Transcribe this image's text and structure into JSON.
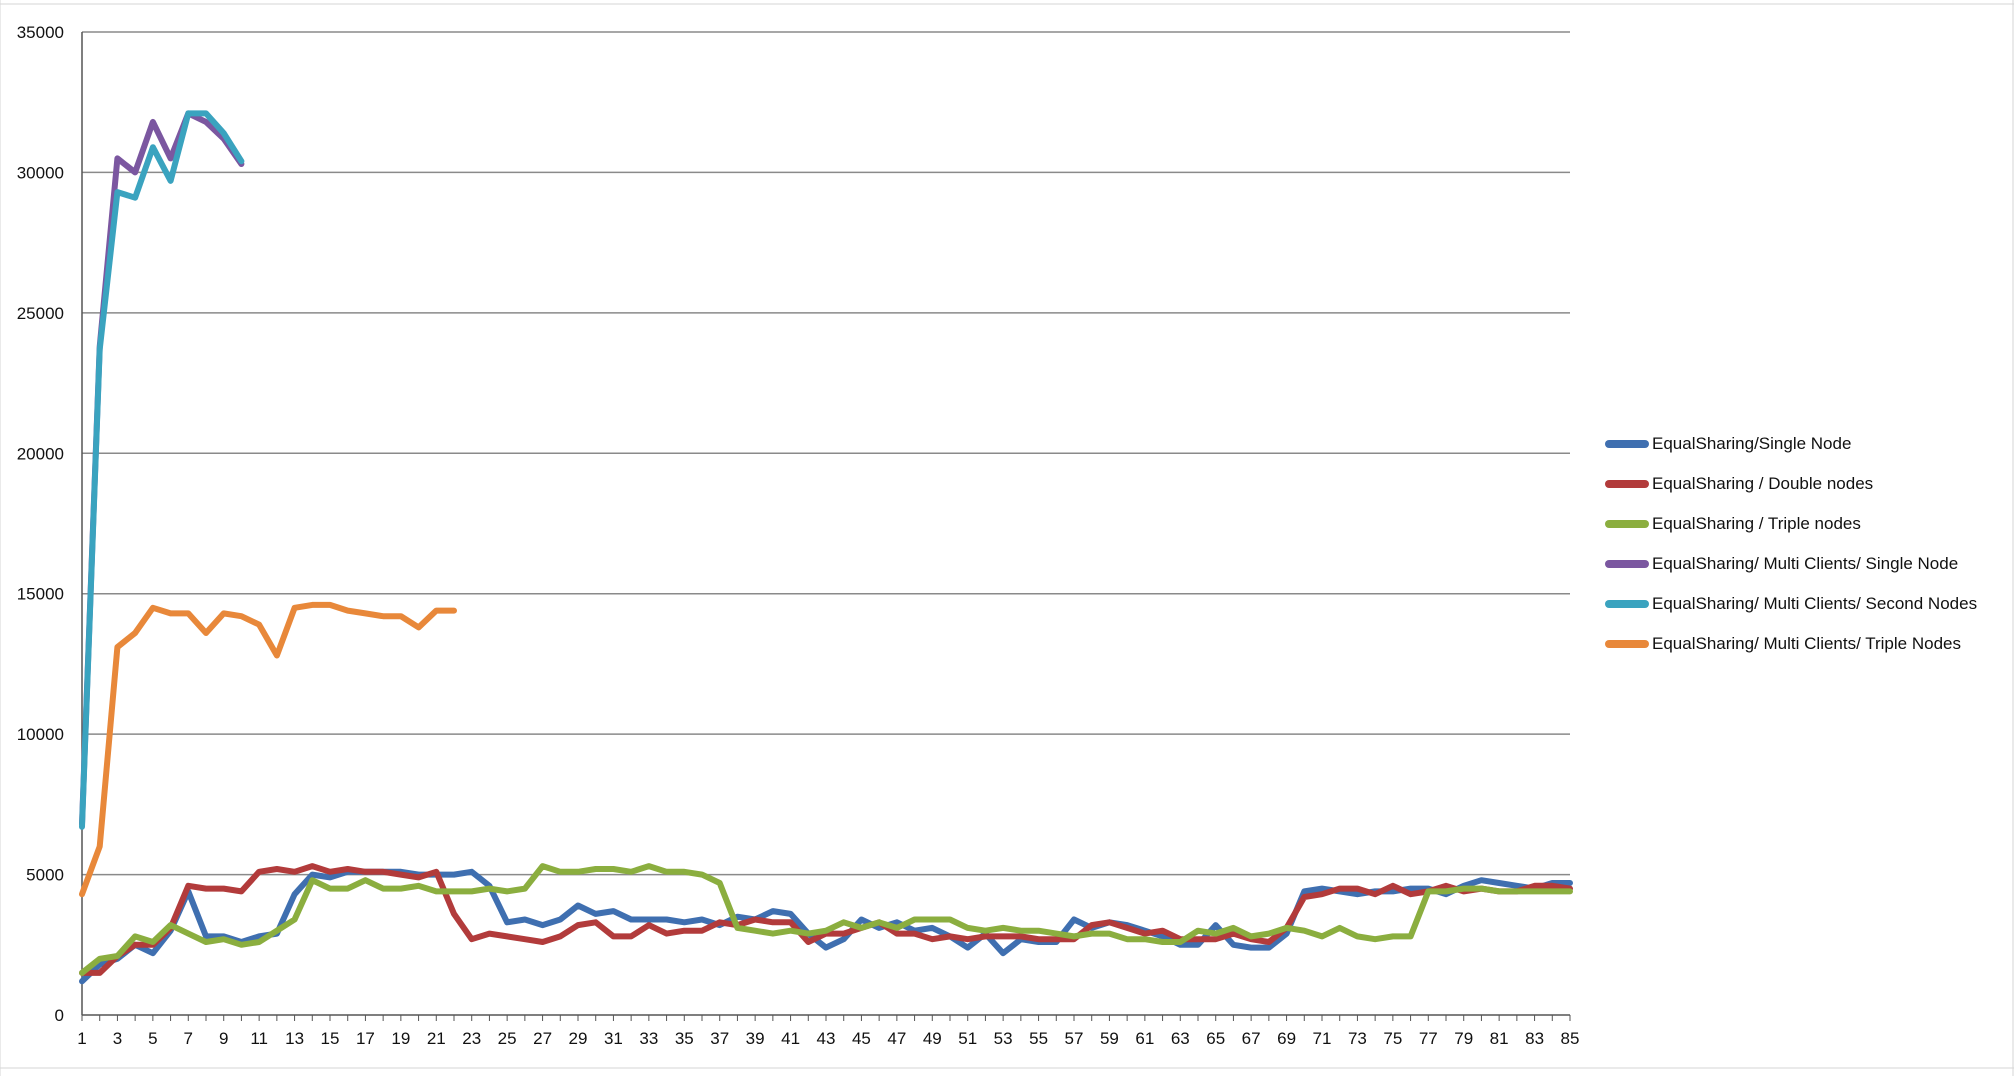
{
  "chart_data": {
    "type": "line",
    "title": "",
    "xlabel": "",
    "ylabel": "",
    "ylim": [
      0,
      35000
    ],
    "xlim": [
      1,
      85
    ],
    "y_ticks": [
      0,
      5000,
      10000,
      15000,
      20000,
      25000,
      30000,
      35000
    ],
    "x_ticks": [
      1,
      3,
      5,
      7,
      9,
      11,
      13,
      15,
      17,
      19,
      21,
      23,
      25,
      27,
      29,
      31,
      33,
      35,
      37,
      39,
      41,
      43,
      45,
      47,
      49,
      51,
      53,
      55,
      57,
      59,
      61,
      63,
      65,
      67,
      69,
      71,
      73,
      75,
      77,
      79,
      81,
      83,
      85
    ],
    "grid": "horizontal",
    "legend_position": "right",
    "series": [
      {
        "name": "EqualSharing/Single Node",
        "color": "#3F6FB0",
        "start_x": 1,
        "values": [
          1200,
          1800,
          2000,
          2500,
          2200,
          3000,
          4400,
          2800,
          2800,
          2600,
          2800,
          2900,
          4300,
          5000,
          4900,
          5100,
          5100,
          5100,
          5100,
          5000,
          5000,
          5000,
          5100,
          4600,
          3300,
          3400,
          3200,
          3400,
          3900,
          3600,
          3700,
          3400,
          3400,
          3400,
          3300,
          3400,
          3200,
          3500,
          3400,
          3700,
          3600,
          2900,
          2400,
          2700,
          3400,
          3100,
          3300,
          3000,
          3100,
          2800,
          2400,
          2900,
          2200,
          2700,
          2600,
          2600,
          3400,
          3100,
          3300,
          3200,
          3000,
          2800,
          2500,
          2500,
          3200,
          2500,
          2400,
          2400,
          2900,
          4400,
          4500,
          4400,
          4300,
          4400,
          4400,
          4500,
          4500,
          4300,
          4600,
          4800,
          4700,
          4600,
          4500,
          4700,
          4700
        ]
      },
      {
        "name": "EqualSharing / Double nodes",
        "color": "#B23B3B",
        "start_x": 1,
        "values": [
          1500,
          1500,
          2100,
          2500,
          2500,
          3100,
          4600,
          4500,
          4500,
          4400,
          5100,
          5200,
          5100,
          5300,
          5100,
          5200,
          5100,
          5100,
          5000,
          4900,
          5100,
          3600,
          2700,
          2900,
          2800,
          2700,
          2600,
          2800,
          3200,
          3300,
          2800,
          2800,
          3200,
          2900,
          3000,
          3000,
          3300,
          3200,
          3400,
          3300,
          3300,
          2600,
          2900,
          2900,
          3100,
          3300,
          2900,
          2900,
          2700,
          2800,
          2700,
          2800,
          2800,
          2800,
          2700,
          2700,
          2700,
          3200,
          3300,
          3100,
          2900,
          3000,
          2700,
          2700,
          2700,
          2900,
          2700,
          2600,
          3100,
          4200,
          4300,
          4500,
          4500,
          4300,
          4600,
          4300,
          4400,
          4600,
          4400,
          4500,
          4400,
          4400,
          4600,
          4600,
          4500
        ]
      },
      {
        "name": "EqualSharing / Triple nodes",
        "color": "#8BAE3F",
        "start_x": 1,
        "values": [
          1500,
          2000,
          2100,
          2800,
          2600,
          3200,
          2900,
          2600,
          2700,
          2500,
          2600,
          3000,
          3400,
          4800,
          4500,
          4500,
          4800,
          4500,
          4500,
          4600,
          4400,
          4400,
          4400,
          4500,
          4400,
          4500,
          5300,
          5100,
          5100,
          5200,
          5200,
          5100,
          5300,
          5100,
          5100,
          5000,
          4700,
          3100,
          3000,
          2900,
          3000,
          2900,
          3000,
          3300,
          3100,
          3300,
          3100,
          3400,
          3400,
          3400,
          3100,
          3000,
          3100,
          3000,
          3000,
          2900,
          2800,
          2900,
          2900,
          2700,
          2700,
          2600,
          2600,
          3000,
          2900,
          3100,
          2800,
          2900,
          3100,
          3000,
          2800,
          3100,
          2800,
          2700,
          2800,
          2800,
          4400,
          4400,
          4500,
          4500,
          4400,
          4400,
          4400,
          4400,
          4400
        ]
      },
      {
        "name": "EqualSharing/ Multi Clients/ Single Node",
        "color": "#7B57A0",
        "start_x": 1,
        "values": [
          6800,
          23800,
          30500,
          30000,
          31800,
          30500,
          32100,
          31800,
          31200,
          30300
        ]
      },
      {
        "name": "EqualSharing/ Multi Clients/ Second Nodes",
        "color": "#3AA3BF",
        "start_x": 1,
        "values": [
          6700,
          23700,
          29300,
          29100,
          30900,
          29700,
          32100,
          32100,
          31400,
          30400
        ]
      },
      {
        "name": "EqualSharing/ Multi Clients/ Triple Nodes",
        "color": "#E8883A",
        "start_x": 1,
        "values": [
          4300,
          6000,
          13100,
          13600,
          14500,
          14300,
          14300,
          13600,
          14300,
          14200,
          13900,
          12800,
          14500,
          14600,
          14600,
          14400,
          14300,
          14200,
          14200,
          13800,
          14400,
          14400
        ]
      }
    ]
  }
}
